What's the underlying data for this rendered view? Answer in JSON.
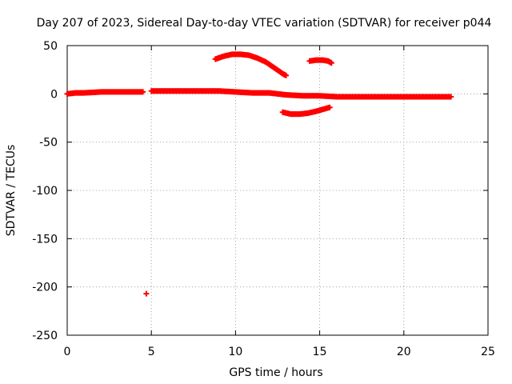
{
  "chart_data": {
    "type": "scatter",
    "title": "Day 207 of 2023, Sidereal Day-to-day VTEC variation (SDTVAR) for receiver p044",
    "xlabel": "GPS time / hours",
    "ylabel": "SDTVAR / TECUs",
    "xlim": [
      0,
      25
    ],
    "ylim": [
      -250,
      50
    ],
    "xticks": [
      0,
      5,
      10,
      15,
      20,
      25
    ],
    "yticks": [
      -250,
      -200,
      -150,
      -100,
      -50,
      0,
      50
    ],
    "xtick_labels": [
      "0",
      "5",
      "10",
      "15",
      "20",
      "25"
    ],
    "ytick_labels": [
      "-250",
      "-200",
      "-150",
      "-100",
      "-50",
      "0",
      "50"
    ],
    "grid": true,
    "marker": "plus",
    "color": "#ff0000",
    "series": [
      {
        "name": "main-track",
        "segments": [
          [
            [
              0.0,
              0.0
            ],
            [
              0.5,
              1
            ],
            [
              1.0,
              1
            ],
            [
              2.0,
              2
            ],
            [
              3.0,
              2
            ],
            [
              4.0,
              2
            ],
            [
              4.5,
              2
            ]
          ],
          [
            [
              5.0,
              3
            ],
            [
              6.0,
              3
            ],
            [
              7.0,
              3
            ],
            [
              8.0,
              3
            ],
            [
              9.0,
              3
            ],
            [
              10.0,
              2
            ],
            [
              11.0,
              1
            ],
            [
              12.0,
              1
            ],
            [
              12.5,
              0
            ],
            [
              13.0,
              -1
            ],
            [
              14.0,
              -2
            ],
            [
              15.0,
              -2
            ],
            [
              16.0,
              -3
            ],
            [
              17.0,
              -3
            ],
            [
              18.0,
              -3
            ],
            [
              19.0,
              -3
            ],
            [
              20.0,
              -3
            ],
            [
              21.0,
              -3
            ],
            [
              22.0,
              -3
            ],
            [
              22.8,
              -3
            ]
          ]
        ]
      },
      {
        "name": "arc-high",
        "segments": [
          [
            [
              8.8,
              36
            ],
            [
              9.3,
              39
            ],
            [
              9.8,
              41
            ],
            [
              10.3,
              41
            ],
            [
              10.8,
              40
            ],
            [
              11.3,
              37
            ],
            [
              11.8,
              33
            ],
            [
              12.3,
              27
            ],
            [
              12.8,
              21
            ],
            [
              13.0,
              19
            ]
          ]
        ]
      },
      {
        "name": "arc-15h",
        "segments": [
          [
            [
              14.4,
              34
            ],
            [
              14.8,
              35
            ],
            [
              15.2,
              35
            ],
            [
              15.5,
              34
            ],
            [
              15.7,
              32
            ]
          ]
        ]
      },
      {
        "name": "arc-low",
        "segments": [
          [
            [
              12.8,
              -19
            ],
            [
              13.3,
              -21
            ],
            [
              13.8,
              -21
            ],
            [
              14.3,
              -20
            ],
            [
              14.8,
              -18
            ],
            [
              15.2,
              -16
            ],
            [
              15.6,
              -14
            ]
          ]
        ]
      },
      {
        "name": "outlier",
        "segments": [
          [
            [
              4.7,
              -207
            ]
          ]
        ]
      }
    ]
  }
}
